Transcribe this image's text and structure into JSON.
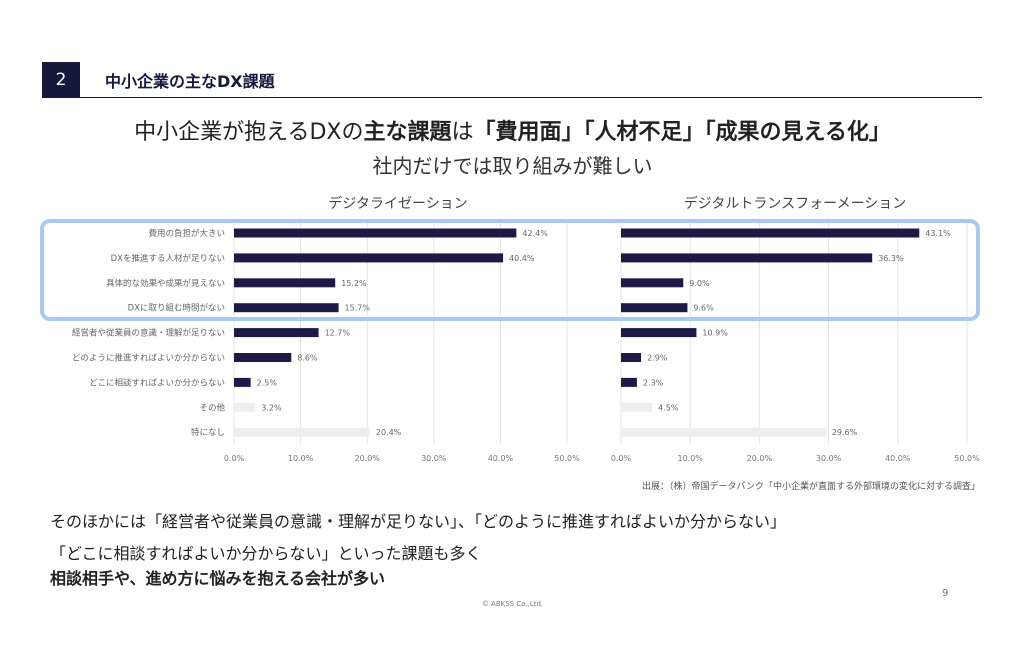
{
  "header": {
    "section_number": "2",
    "section_title": "中小企業の主なDX課題"
  },
  "headline": {
    "prefix": "中小企業が抱えるDXの",
    "bold1": "主な課題",
    "mid": "は",
    "bold2": "「費用面」「人材不足」「成果の見える化」",
    "subline": "社内だけでは取り組みが難しい"
  },
  "chart_data": [
    {
      "type": "bar",
      "title": "デジタライゼーション",
      "orientation": "horizontal",
      "categories": [
        "費用の負担が大きい",
        "DXを推進する人材が足りない",
        "具体的な効果や成果が見えない",
        "DXに取り組む時間がない",
        "経営者や従業員の意識・理解が足りない",
        "どのように推進すればよいか分からない",
        "どこに相談すればよいか分からない",
        "その他",
        "特になし"
      ],
      "values": [
        42.4,
        40.4,
        15.2,
        15.7,
        12.7,
        8.6,
        2.5,
        3.2,
        20.4
      ],
      "labels": [
        "42.4%",
        "40.4%",
        "15.2%",
        "15.7%",
        "12.7%",
        "8.6%",
        "2.5%",
        "3.2%",
        "20.4%"
      ],
      "xlim": [
        0,
        50
      ],
      "ticks": [
        "0.0%",
        "10.0%",
        "20.0%",
        "30.0%",
        "40.0%",
        "50.0%"
      ],
      "grid": true
    },
    {
      "type": "bar",
      "title": "デジタルトランスフォーメーション",
      "orientation": "horizontal",
      "values": [
        43.1,
        36.3,
        9.0,
        9.6,
        10.9,
        2.9,
        2.3,
        4.5,
        29.6
      ],
      "labels": [
        "43.1%",
        "36.3%",
        "9.0%",
        "9.6%",
        "10.9%",
        "2.9%",
        "2.3%",
        "4.5%",
        "29.6%"
      ],
      "xlim": [
        0,
        50
      ],
      "ticks": [
        "0.0%",
        "10.0%",
        "20.0%",
        "30.0%",
        "40.0%",
        "50.0%"
      ],
      "grid": true
    }
  ],
  "colors": {
    "bar": "#1e1945",
    "bar_muted": "#eeeeee",
    "highlight": "#a9c8f2",
    "navy": "#15193a"
  },
  "source": "出展：（株）帝国データバンク「中小企業が直面する外部環境の変化に対する調査」",
  "body": {
    "line1": "そのほかには「経営者や従業員の意識・理解が足りない」、「どのように推進すればよいか分からない」",
    "line2": "「どこに相談すればよいか分からない」といった課題も多く",
    "line3": "相談相手や、進め方に悩みを抱える会社が多い"
  },
  "footer": {
    "copyright": "© ABKSS Co.,Ltd.",
    "page": "9"
  }
}
